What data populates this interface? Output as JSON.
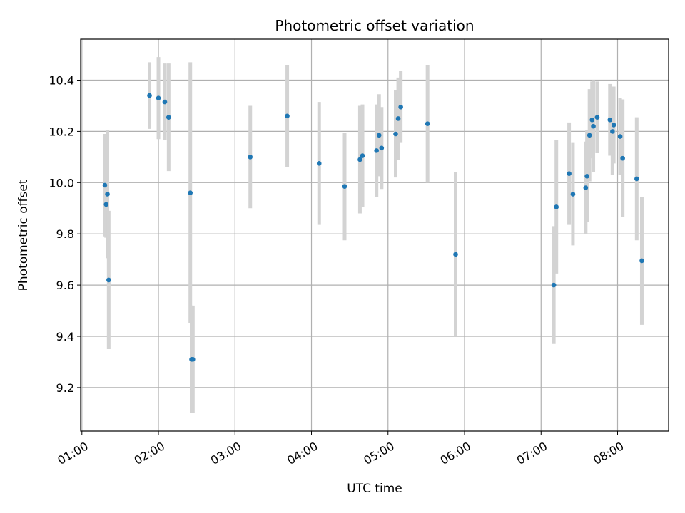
{
  "chart_data": {
    "type": "scatter",
    "title": "Photometric offset variation",
    "xlabel": "UTC time",
    "ylabel": "Photometric offset",
    "grid": true,
    "xlim": [
      "00:59",
      "08:40"
    ],
    "ylim": [
      9.03,
      10.56
    ],
    "xticks": [
      "01:00",
      "02:00",
      "03:00",
      "04:00",
      "05:00",
      "06:00",
      "07:00",
      "08:00"
    ],
    "yticks": [
      9.2,
      9.4,
      9.6,
      9.8,
      10.0,
      10.2,
      10.4
    ],
    "ytick_labels": [
      "9.2",
      "9.4",
      "9.6",
      "9.8",
      "10.0",
      "10.2",
      "10.4"
    ],
    "colors": {
      "points": "#1f77b4",
      "errorbars": "#d3d3d3",
      "grid": "#b0b0b0"
    },
    "series": [
      {
        "x": [
          "01:18",
          "01:19",
          "01:20",
          "01:21",
          "01:53",
          "02:00",
          "02:05",
          "02:08",
          "02:25",
          "02:26",
          "02:27",
          "03:12",
          "03:41",
          "04:06",
          "04:26",
          "04:38",
          "04:40",
          "04:51",
          "04:53",
          "04:55",
          "05:06",
          "05:08",
          "05:10",
          "05:31",
          "05:53",
          "07:10",
          "07:12",
          "07:22",
          "07:25",
          "07:35",
          "07:36",
          "07:38",
          "07:40",
          "07:41",
          "07:44",
          "07:54",
          "07:56",
          "07:57",
          "08:02",
          "08:04",
          "08:15",
          "08:19"
        ],
        "y": [
          9.99,
          9.915,
          9.955,
          9.62,
          10.34,
          10.33,
          10.315,
          10.255,
          9.96,
          9.31,
          9.31,
          10.1,
          10.26,
          10.075,
          9.985,
          10.09,
          10.105,
          10.125,
          10.185,
          10.135,
          10.19,
          10.25,
          10.295,
          10.23,
          9.72,
          9.6,
          9.905,
          10.035,
          9.955,
          9.98,
          10.025,
          10.185,
          10.245,
          10.22,
          10.255,
          10.245,
          10.2,
          10.225,
          10.18,
          10.095,
          10.015,
          9.695
        ],
        "yerr": [
          0.2,
          0.13,
          0.25,
          0.27,
          0.13,
          0.16,
          0.15,
          0.21,
          0.51,
          0.21,
          0.21,
          0.2,
          0.2,
          0.24,
          0.21,
          0.21,
          0.2,
          0.18,
          0.16,
          0.16,
          0.17,
          0.16,
          0.14,
          0.23,
          0.32,
          0.23,
          0.26,
          0.2,
          0.2,
          0.18,
          0.18,
          0.18,
          0.15,
          0.18,
          0.14,
          0.14,
          0.17,
          0.15,
          0.15,
          0.23,
          0.24,
          0.25
        ]
      }
    ]
  }
}
